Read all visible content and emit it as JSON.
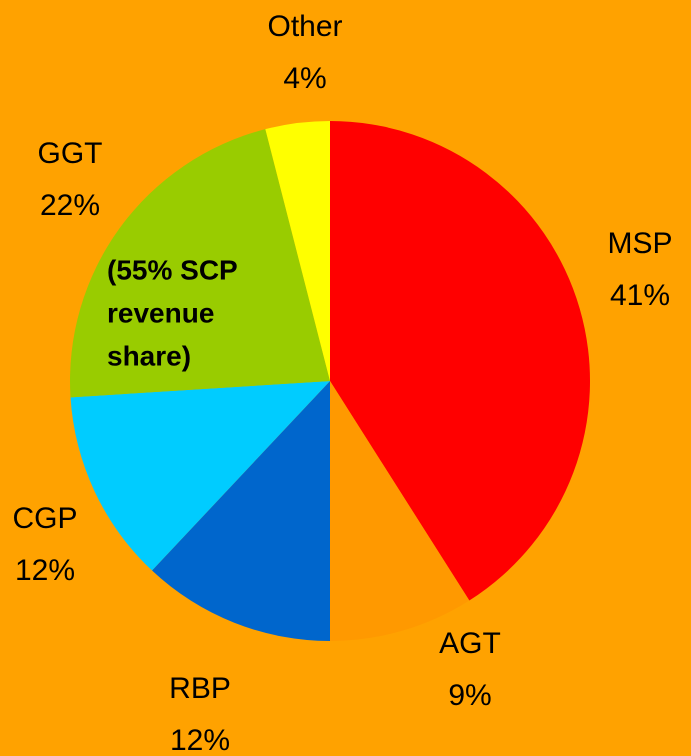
{
  "chart_data": {
    "type": "pie",
    "categories": [
      "MSP",
      "AGT",
      "RBP",
      "CGP",
      "GGT",
      "Other"
    ],
    "values": [
      41,
      9,
      12,
      12,
      22,
      4
    ],
    "value_labels": [
      "41%",
      "9%",
      "12%",
      "12%",
      "22%",
      "4%"
    ],
    "colors": [
      "#ff0000",
      "#ff9900",
      "#0066cc",
      "#00ccff",
      "#99cc00",
      "#ffff00"
    ],
    "annotation": [
      "(55% SCP",
      "revenue",
      "share)"
    ]
  }
}
